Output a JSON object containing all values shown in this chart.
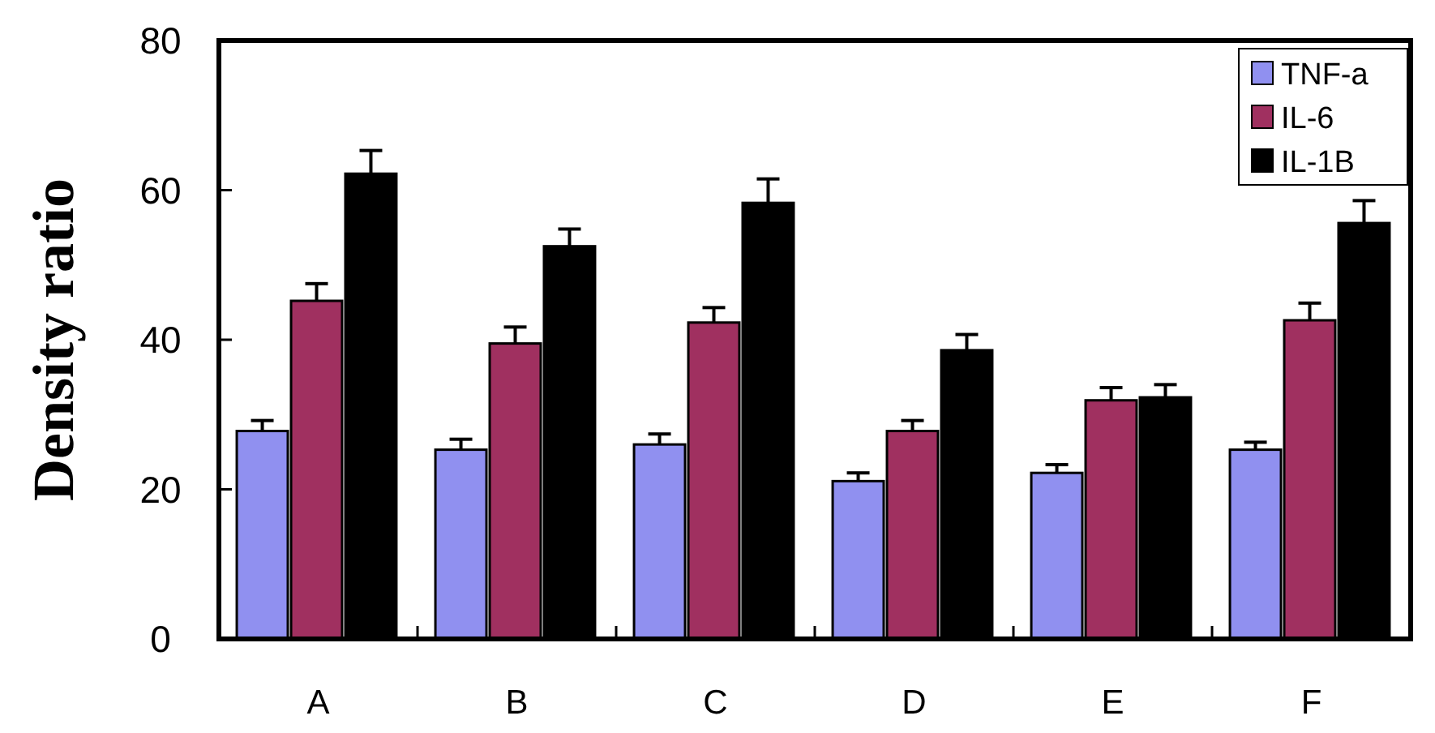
{
  "chart_data": {
    "type": "bar",
    "ylabel": "Density ratio",
    "categories": [
      "A",
      "B",
      "C",
      "D",
      "E",
      "F"
    ],
    "series": [
      {
        "name": "TNF-a",
        "color": "#9090f0",
        "values": [
          27.8,
          25.3,
          26.0,
          21.1,
          22.2,
          25.3
        ],
        "errors": [
          1.4,
          1.4,
          1.4,
          1.1,
          1.1,
          1.0
        ]
      },
      {
        "name": "IL-6",
        "color": "#a03060",
        "values": [
          45.2,
          39.5,
          42.3,
          27.8,
          31.9,
          42.6
        ],
        "errors": [
          2.3,
          2.2,
          2.0,
          1.4,
          1.7,
          2.3
        ]
      },
      {
        "name": "IL-1B",
        "color": "#000000",
        "values": [
          62.2,
          52.5,
          58.3,
          38.6,
          32.3,
          55.6
        ],
        "errors": [
          3.1,
          2.3,
          3.2,
          2.1,
          1.7,
          3.0
        ]
      }
    ],
    "ylim": [
      0,
      80
    ],
    "yticks": [
      0,
      20,
      40,
      60,
      80
    ],
    "grid": false,
    "legend": "top right"
  }
}
